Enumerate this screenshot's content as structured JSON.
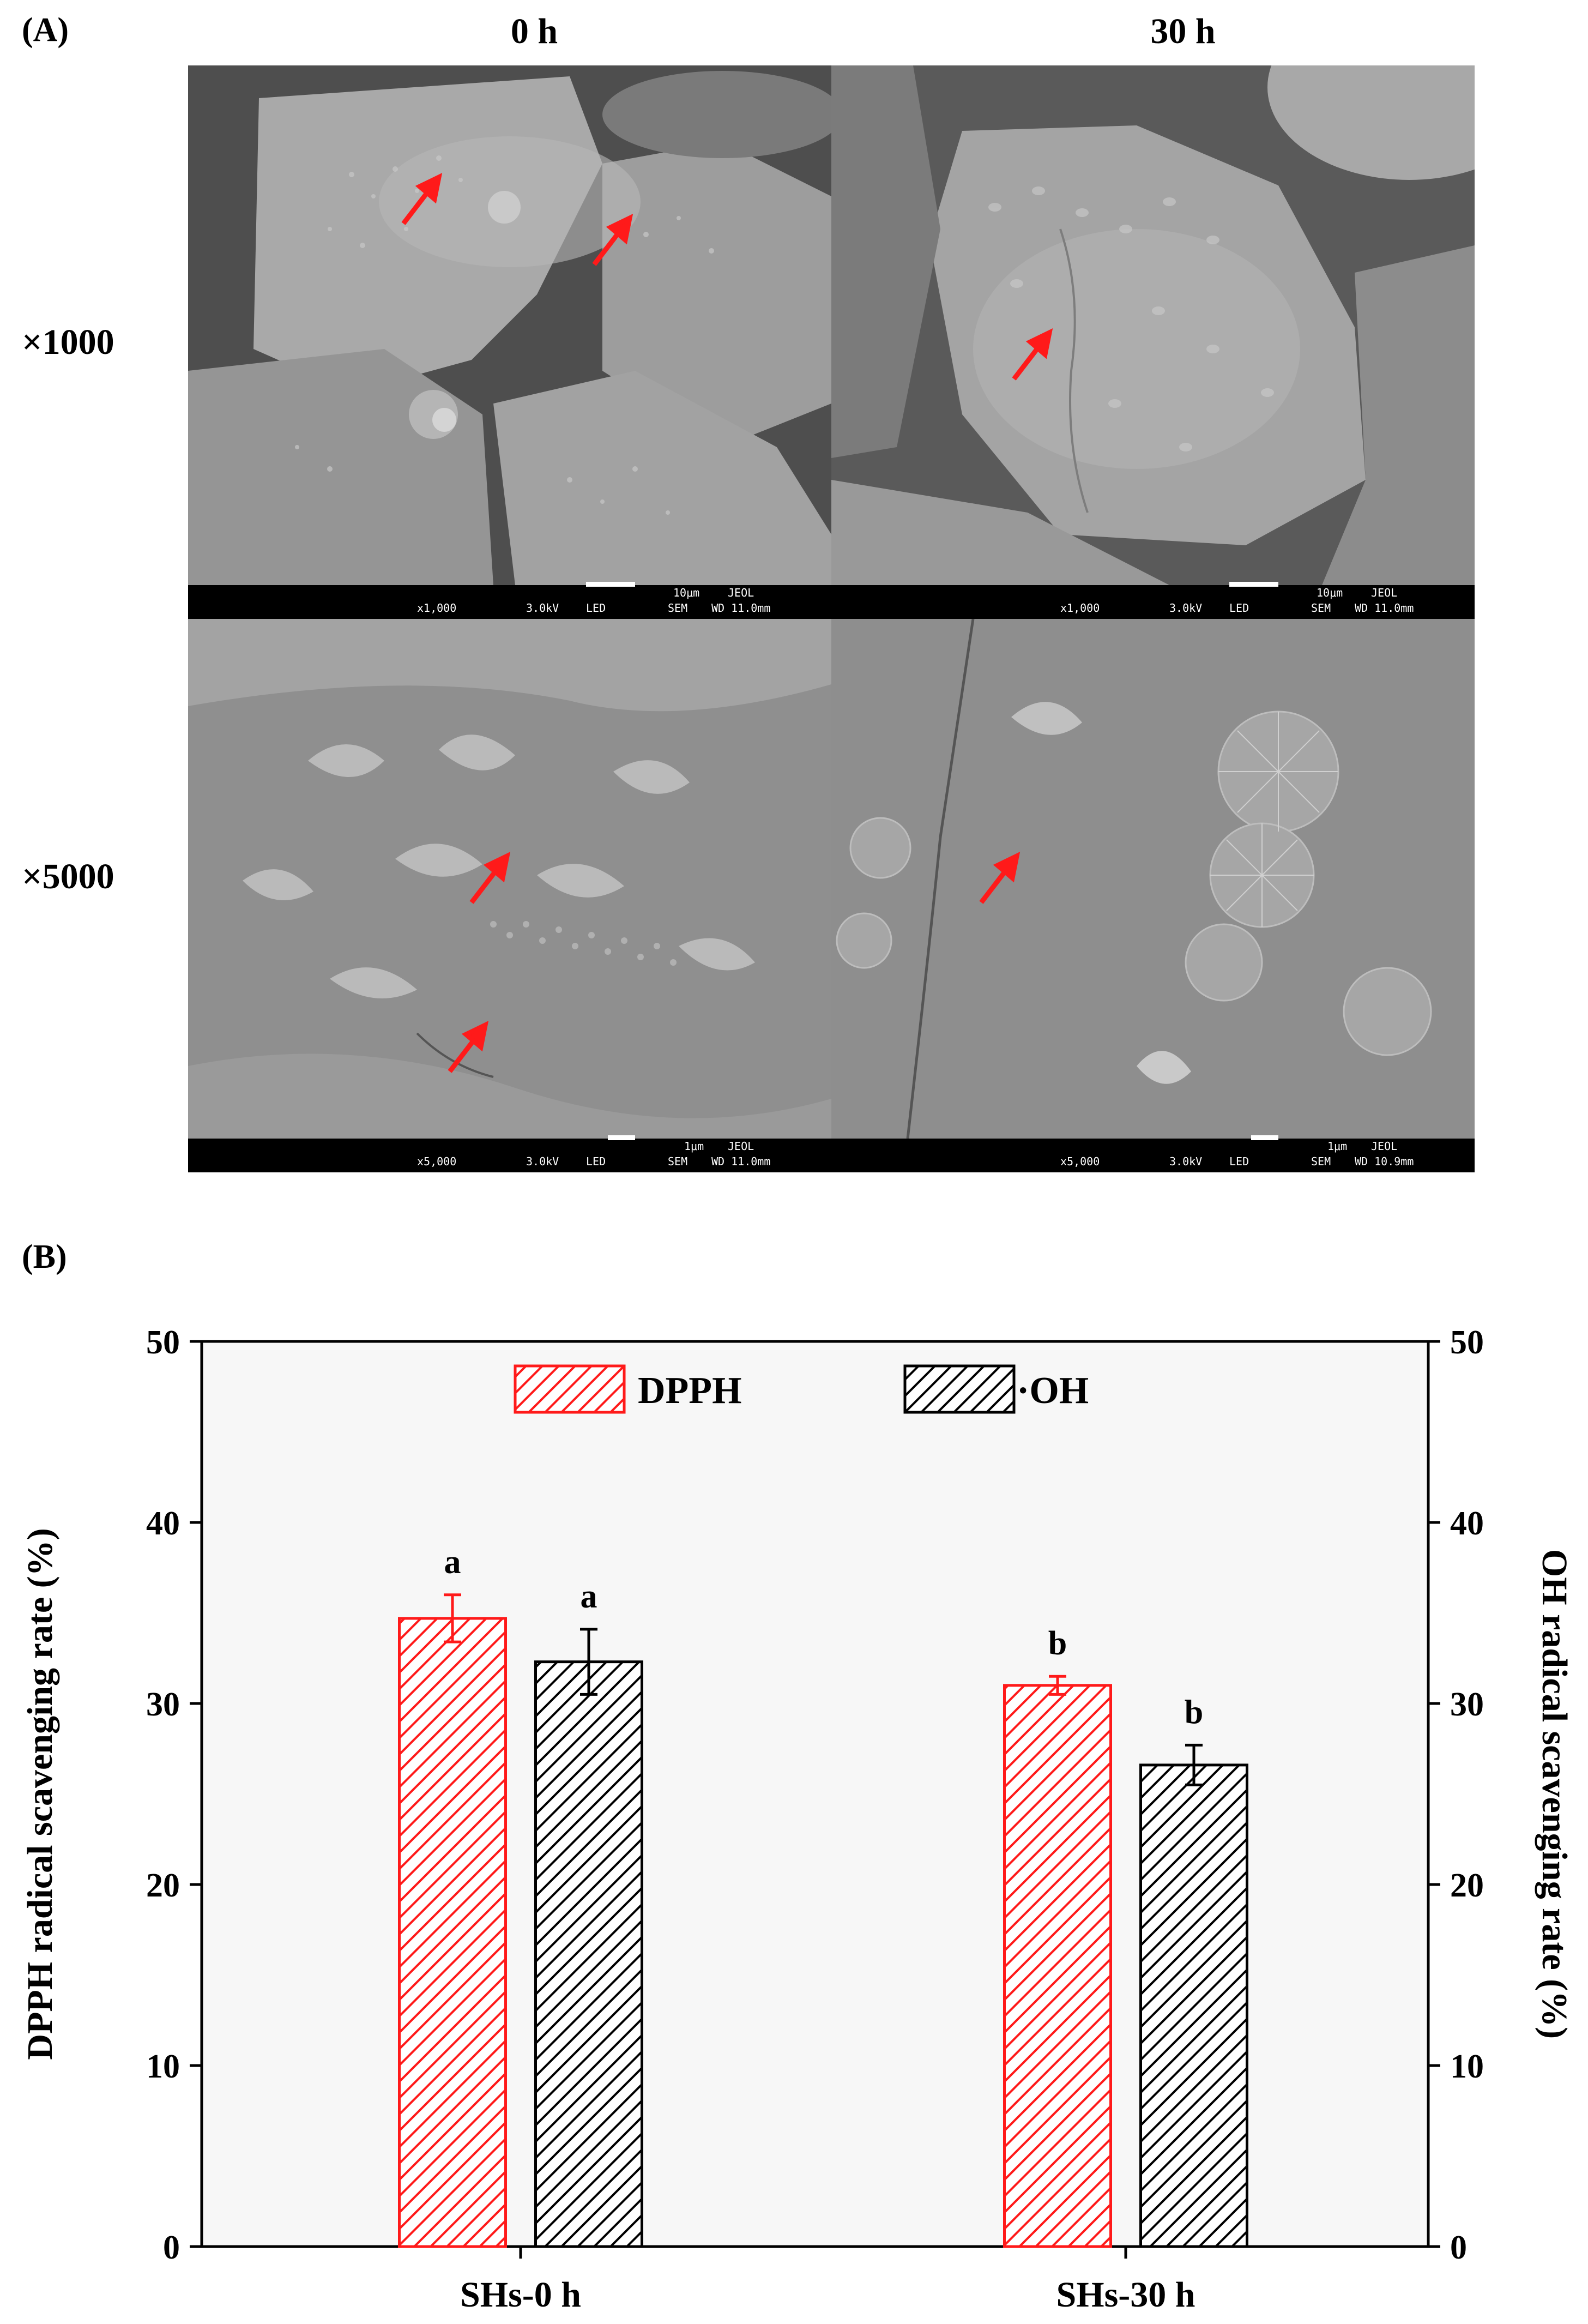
{
  "panel_a": {
    "label": "(A)",
    "columns": [
      "0 h",
      "30 h"
    ],
    "rows": [
      "×1000",
      "×5000"
    ],
    "micrographs": [
      {
        "id": "m00",
        "bar": "10μm",
        "mag": "x1,000",
        "kv": "3.0kV",
        "det": "LED",
        "mode": "SEM",
        "wd": "WD 11.0mm",
        "brand": "JEOL"
      },
      {
        "id": "m01",
        "bar": "10μm",
        "mag": "x1,000",
        "kv": "3.0kV",
        "det": "LED",
        "mode": "SEM",
        "wd": "WD 11.0mm",
        "brand": "JEOL"
      },
      {
        "id": "m10",
        "bar": "1μm",
        "mag": "x5,000",
        "kv": "3.0kV",
        "det": "LED",
        "mode": "SEM",
        "wd": "WD 11.0mm",
        "brand": "JEOL"
      },
      {
        "id": "m11",
        "bar": "1μm",
        "mag": "x5,000",
        "kv": "3.0kV",
        "det": "LED",
        "mode": "SEM",
        "wd": "WD 10.9mm",
        "brand": "JEOL"
      }
    ],
    "arrow_color": "#ff1a1a"
  },
  "panel_b": {
    "label": "(B)"
  },
  "chart_data": {
    "type": "bar",
    "categories": [
      "SHs-0 h",
      "SHs-30 h"
    ],
    "series": [
      {
        "name": "DPPH",
        "values": [
          34.7,
          31.0
        ],
        "errors": [
          1.3,
          0.5
        ],
        "letters": [
          "a",
          "b"
        ],
        "color": "#ff1a1a",
        "pattern": "hatch"
      },
      {
        "name": "·OH",
        "values": [
          32.3,
          26.6
        ],
        "errors": [
          1.8,
          1.1
        ],
        "letters": [
          "a",
          "b"
        ],
        "color": "#000000",
        "pattern": "hatch"
      }
    ],
    "ylabel": "DPPH radical scavenging rate (%)",
    "y2label": "OH radical scavenging rate (%)",
    "ylim": [
      0,
      50
    ],
    "y2lim": [
      0,
      50
    ],
    "yticks": [
      0,
      10,
      20,
      30,
      40,
      50
    ],
    "legend_position": "top-center",
    "grid": false
  }
}
